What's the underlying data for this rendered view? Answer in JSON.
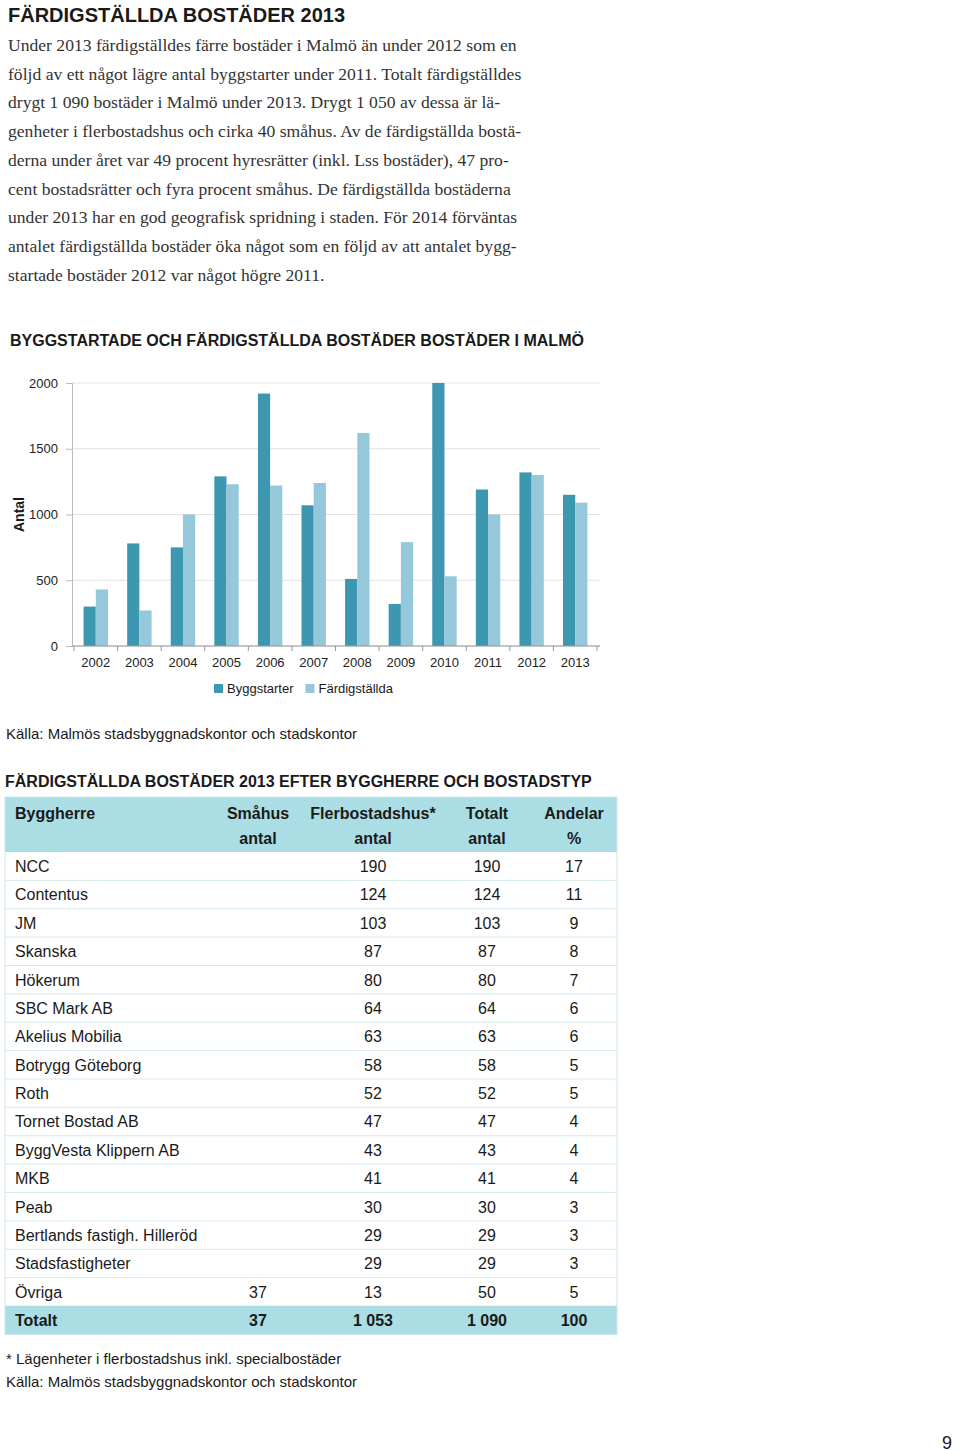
{
  "heading": "FÄRDIGSTÄLLDA BOSTÄDER 2013",
  "paragraph": {
    "lines": [
      "Under 2013 färdigställdes färre bostäder i Malmö än under 2012 som en",
      "följd av ett något lägre antal byggstarter under 2011. Totalt färdigställdes",
      "drygt 1 090 bostäder i Malmö under 2013. Drygt 1 050 av dessa är lä-",
      "genheter i flerbostadshus och cirka 40 småhus. Av de färdigställda bostä-",
      "derna under året var 49 procent hyresrätter (inkl. Lss bostäder), 47 pro-",
      "cent bostadsrätter och fyra procent småhus. De färdigställda bostäderna",
      "under 2013 har en god geografisk spridning i staden. För 2014 förväntas",
      "antalet färdigställda bostäder öka något som en följd av att antalet bygg-",
      "startade bostäder 2012 var något högre 2011."
    ]
  },
  "chart_data": {
    "type": "bar",
    "title": "BYGGSTARTADE OCH FÄRDIGSTÄLLDA BOSTÄDER BOSTÄDER I MALMÖ",
    "y_label": "Antal",
    "categories": [
      "2002",
      "2003",
      "2004",
      "2005",
      "2006",
      "2007",
      "2008",
      "2009",
      "2010",
      "2011",
      "2012",
      "2013"
    ],
    "series": [
      {
        "name": "Byggstarter",
        "color": "#3d97b1",
        "values": [
          300,
          780,
          750,
          1290,
          1920,
          1070,
          510,
          320,
          2000,
          1190,
          1320,
          1150
        ]
      },
      {
        "name": "Färdigställda",
        "color": "#94c8da",
        "values": [
          430,
          270,
          1000,
          1230,
          1220,
          1240,
          1620,
          790,
          530,
          1000,
          1300,
          1090
        ]
      }
    ],
    "ylim": [
      0,
      2000
    ],
    "yticks": [
      0,
      500,
      1000,
      1500,
      2000
    ],
    "grid": true,
    "legend": "bottom",
    "source": "Källa: Malmös stadsbyggnadskontor och stadskontor"
  },
  "table": {
    "title": "FÄRDIGSTÄLLDA BOSTÄDER 2013 EFTER BYGGHERRE OCH BOSTADSTYP",
    "columns": [
      [
        "Byggherre"
      ],
      [
        "Småhus",
        "antal"
      ],
      [
        "Flerbostadshus*",
        "antal"
      ],
      [
        "Totalt",
        "antal"
      ],
      [
        "Andelar",
        "%"
      ]
    ],
    "rows": [
      [
        "NCC",
        null,
        190,
        190,
        17
      ],
      [
        "Contentus",
        null,
        124,
        124,
        11
      ],
      [
        "JM",
        null,
        103,
        103,
        9
      ],
      [
        "Skanska",
        null,
        87,
        87,
        8
      ],
      [
        "Hökerum",
        null,
        80,
        80,
        7
      ],
      [
        "SBC Mark AB",
        null,
        64,
        64,
        6
      ],
      [
        "Akelius Mobilia",
        null,
        63,
        63,
        6
      ],
      [
        "Botrygg Göteborg",
        null,
        58,
        58,
        5
      ],
      [
        "Roth",
        null,
        52,
        52,
        5
      ],
      [
        "Tornet Bostad AB",
        null,
        47,
        47,
        4
      ],
      [
        "ByggVesta Klippern AB",
        null,
        43,
        43,
        4
      ],
      [
        "MKB",
        null,
        41,
        41,
        4
      ],
      [
        "Peab",
        null,
        30,
        30,
        3
      ],
      [
        "Bertlands fastigh. Hilleröd",
        null,
        29,
        29,
        3
      ],
      [
        "Stadsfastigheter",
        null,
        29,
        29,
        3
      ],
      [
        "Övriga",
        37,
        13,
        50,
        5
      ]
    ],
    "total_row": [
      "Totalt",
      37,
      "1 053",
      "1 090",
      100
    ],
    "footnote": "* Lägenheter i flerbostadshus inkl. specialbostäder",
    "source": "Källa: Malmös stadsbyggnadskontor och stadskontor"
  },
  "page_number": "9"
}
